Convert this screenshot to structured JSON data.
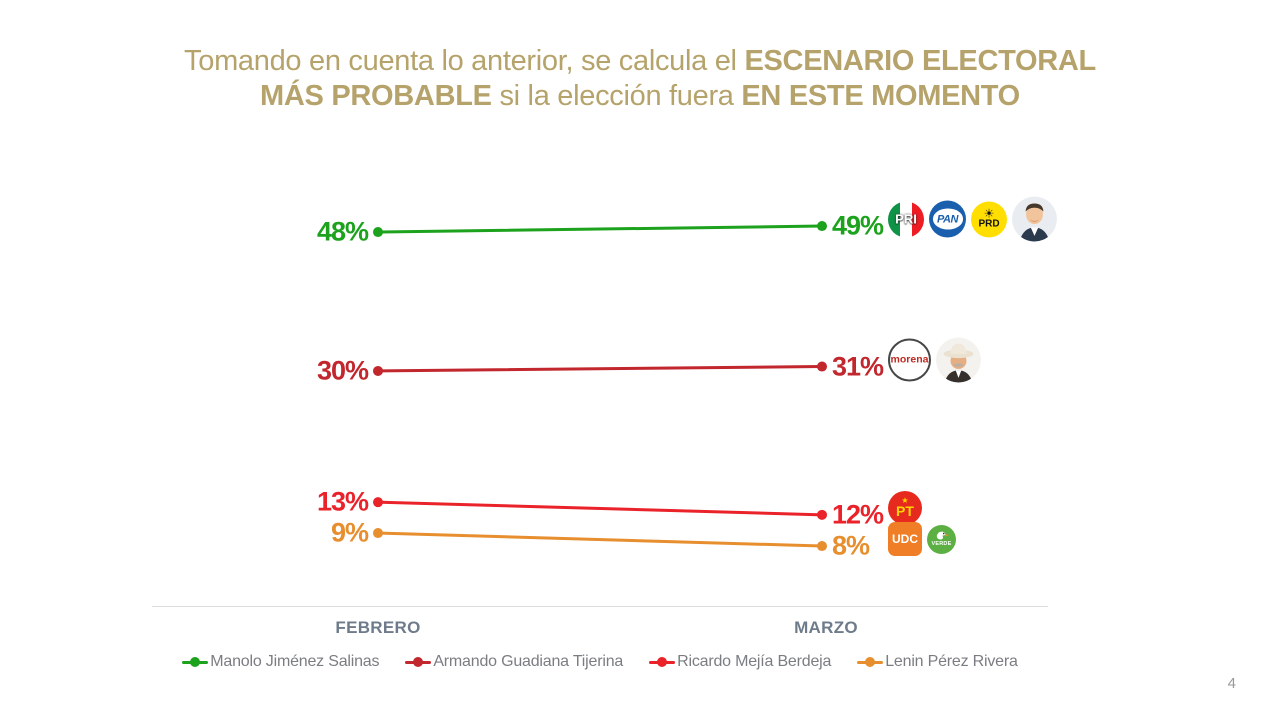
{
  "title": {
    "color": "#B5A36B",
    "lines": [
      [
        {
          "text": "Tomando en cuenta lo anterior, se calcula el ",
          "bold": false
        },
        {
          "text": "ESCENARIO ELECTORAL",
          "bold": true
        }
      ],
      [
        {
          "text": "MÁS PROBABLE",
          "bold": true
        },
        {
          "text": " si la elección fuera ",
          "bold": false
        },
        {
          "text": "EN ESTE MOMENTO",
          "bold": true
        }
      ]
    ]
  },
  "chart_data": {
    "type": "line",
    "subtype": "slope",
    "categories": [
      "FEBRERO",
      "MARZO"
    ],
    "series": [
      {
        "name": "Manolo Jiménez Salinas",
        "color": "#1CA21C",
        "values": [
          48,
          49
        ],
        "labels": [
          "48%",
          "49%"
        ],
        "logos": [
          "pri",
          "pan",
          "prd",
          "photo-manolo"
        ]
      },
      {
        "name": "Armando Guadiana Tijerina",
        "color": "#C1272D",
        "values": [
          30,
          31
        ],
        "labels": [
          "30%",
          "31%"
        ],
        "logos": [
          "morena",
          "photo-guadiana"
        ]
      },
      {
        "name": "Ricardo Mejía Berdeja",
        "color": "#EA222A",
        "values": [
          13,
          12
        ],
        "labels": [
          "13%",
          "12%"
        ],
        "logos": [
          "pt"
        ]
      },
      {
        "name": "Lenin Pérez Rivera",
        "color": "#E78E2E",
        "values": [
          9,
          8
        ],
        "labels": [
          "9%",
          "8%"
        ],
        "logos": [
          "udc",
          "verde"
        ]
      }
    ],
    "ylim": [
      0,
      55
    ],
    "grid": false,
    "legend_position": "bottom",
    "axis_label_color": "#6E7B8A",
    "legend_text_color": "#7A7D82"
  },
  "logos": {
    "pri": {
      "type": "pri",
      "label": "PRI"
    },
    "pan": {
      "type": "pan",
      "label": "PAN"
    },
    "prd": {
      "type": "prd",
      "label": "PRD"
    },
    "morena": {
      "type": "morena",
      "label": "morena"
    },
    "pt": {
      "type": "pt",
      "label": "PT"
    },
    "udc": {
      "type": "udc",
      "label": "UDC"
    },
    "verde": {
      "type": "verde",
      "label": "VERDE"
    },
    "photo-manolo": {
      "type": "photo",
      "variant": "suit",
      "label": ""
    },
    "photo-guadiana": {
      "type": "photo",
      "variant": "hat",
      "label": ""
    }
  },
  "page_number": "4"
}
